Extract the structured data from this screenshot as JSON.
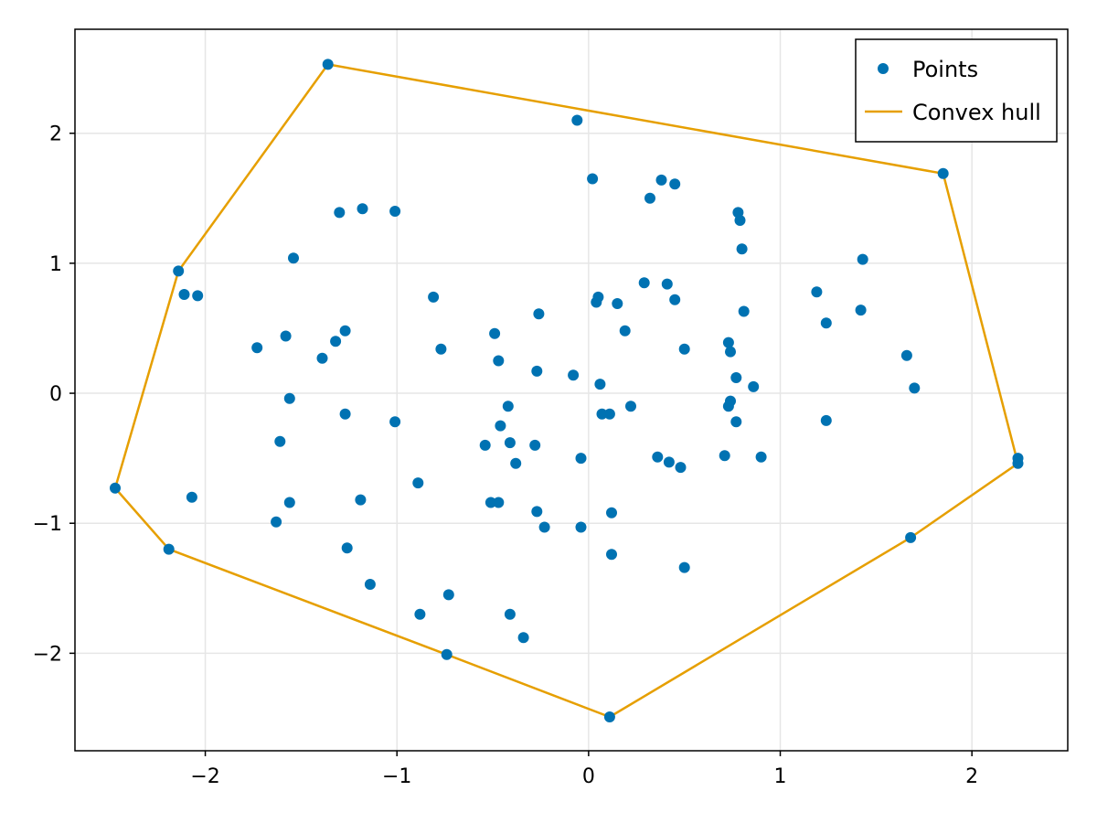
{
  "chart_data": {
    "type": "scatter",
    "title": "",
    "xlabel": "",
    "ylabel": "",
    "xlim": [
      -2.68,
      2.5
    ],
    "ylim": [
      -2.75,
      2.8
    ],
    "x_ticks": [
      -2,
      -1,
      0,
      1,
      2
    ],
    "y_ticks": [
      -2,
      -1,
      0,
      1,
      2
    ],
    "x_tick_labels": [
      "−2",
      "−1",
      "0",
      "1",
      "2"
    ],
    "y_tick_labels": [
      "−2",
      "−1",
      "0",
      "1",
      "2"
    ],
    "grid": true,
    "legend_position": "top-right",
    "colors": {
      "points": "#0072b2",
      "hull": "#e69f00",
      "grid": "#e6e6e6",
      "axis": "#000000"
    },
    "series": [
      {
        "name": "Points",
        "type": "scatter",
        "points": [
          [
            -1.36,
            2.53
          ],
          [
            1.85,
            1.69
          ],
          [
            2.24,
            -0.5
          ],
          [
            2.24,
            -0.54
          ],
          [
            1.68,
            -1.11
          ],
          [
            0.11,
            -2.49
          ],
          [
            -0.74,
            -2.01
          ],
          [
            -2.19,
            -1.2
          ],
          [
            -2.47,
            -0.73
          ],
          [
            -2.14,
            0.94
          ],
          [
            -0.06,
            2.1
          ],
          [
            0.02,
            1.65
          ],
          [
            0.38,
            1.64
          ],
          [
            0.45,
            1.61
          ],
          [
            0.32,
            1.5
          ],
          [
            0.78,
            1.39
          ],
          [
            0.79,
            1.33
          ],
          [
            0.8,
            1.11
          ],
          [
            -1.3,
            1.39
          ],
          [
            -1.18,
            1.42
          ],
          [
            -1.01,
            1.4
          ],
          [
            -1.54,
            1.04
          ],
          [
            -2.11,
            0.76
          ],
          [
            -2.04,
            0.75
          ],
          [
            1.43,
            1.03
          ],
          [
            1.19,
            0.78
          ],
          [
            1.42,
            0.64
          ],
          [
            1.24,
            0.54
          ],
          [
            -0.81,
            0.74
          ],
          [
            0.29,
            0.85
          ],
          [
            0.41,
            0.84
          ],
          [
            0.05,
            0.74
          ],
          [
            0.04,
            0.7
          ],
          [
            0.15,
            0.69
          ],
          [
            0.45,
            0.72
          ],
          [
            0.81,
            0.63
          ],
          [
            -0.26,
            0.61
          ],
          [
            0.19,
            0.48
          ],
          [
            -1.27,
            0.48
          ],
          [
            -1.58,
            0.44
          ],
          [
            -0.49,
            0.46
          ],
          [
            -1.32,
            0.4
          ],
          [
            -1.73,
            0.35
          ],
          [
            -0.77,
            0.34
          ],
          [
            0.5,
            0.34
          ],
          [
            0.73,
            0.39
          ],
          [
            0.74,
            0.32
          ],
          [
            1.66,
            0.29
          ],
          [
            -1.39,
            0.27
          ],
          [
            -0.47,
            0.25
          ],
          [
            -0.27,
            0.17
          ],
          [
            -0.08,
            0.14
          ],
          [
            0.06,
            0.07
          ],
          [
            0.77,
            0.12
          ],
          [
            0.86,
            0.05
          ],
          [
            1.7,
            0.04
          ],
          [
            -1.56,
            -0.04
          ],
          [
            -0.42,
            -0.1
          ],
          [
            0.22,
            -0.1
          ],
          [
            0.74,
            -0.06
          ],
          [
            0.73,
            -0.1
          ],
          [
            -1.27,
            -0.16
          ],
          [
            0.07,
            -0.16
          ],
          [
            0.11,
            -0.16
          ],
          [
            0.77,
            -0.22
          ],
          [
            -1.01,
            -0.22
          ],
          [
            -0.46,
            -0.25
          ],
          [
            1.24,
            -0.21
          ],
          [
            -1.61,
            -0.37
          ],
          [
            -0.41,
            -0.38
          ],
          [
            -0.54,
            -0.4
          ],
          [
            -0.28,
            -0.4
          ],
          [
            -0.04,
            -0.5
          ],
          [
            0.36,
            -0.49
          ],
          [
            0.71,
            -0.48
          ],
          [
            0.9,
            -0.49
          ],
          [
            0.42,
            -0.53
          ],
          [
            0.48,
            -0.57
          ],
          [
            -0.38,
            -0.54
          ],
          [
            -0.89,
            -0.69
          ],
          [
            -2.07,
            -0.8
          ],
          [
            -1.56,
            -0.84
          ],
          [
            -1.19,
            -0.82
          ],
          [
            -0.51,
            -0.84
          ],
          [
            -0.47,
            -0.84
          ],
          [
            -0.27,
            -0.91
          ],
          [
            0.12,
            -0.92
          ],
          [
            -1.63,
            -0.99
          ],
          [
            -0.23,
            -1.03
          ],
          [
            -0.04,
            -1.03
          ],
          [
            -1.26,
            -1.19
          ],
          [
            0.12,
            -1.24
          ],
          [
            0.5,
            -1.34
          ],
          [
            -1.14,
            -1.47
          ],
          [
            -0.73,
            -1.55
          ],
          [
            -0.88,
            -1.7
          ],
          [
            -0.41,
            -1.7
          ],
          [
            -0.34,
            -1.88
          ]
        ]
      },
      {
        "name": "Convex hull",
        "type": "line",
        "points": [
          [
            -1.36,
            2.53
          ],
          [
            1.85,
            1.69
          ],
          [
            2.24,
            -0.54
          ],
          [
            1.68,
            -1.11
          ],
          [
            0.11,
            -2.49
          ],
          [
            -0.74,
            -2.01
          ],
          [
            -2.19,
            -1.2
          ],
          [
            -2.47,
            -0.73
          ],
          [
            -2.14,
            0.94
          ],
          [
            -1.36,
            2.53
          ]
        ]
      }
    ]
  }
}
